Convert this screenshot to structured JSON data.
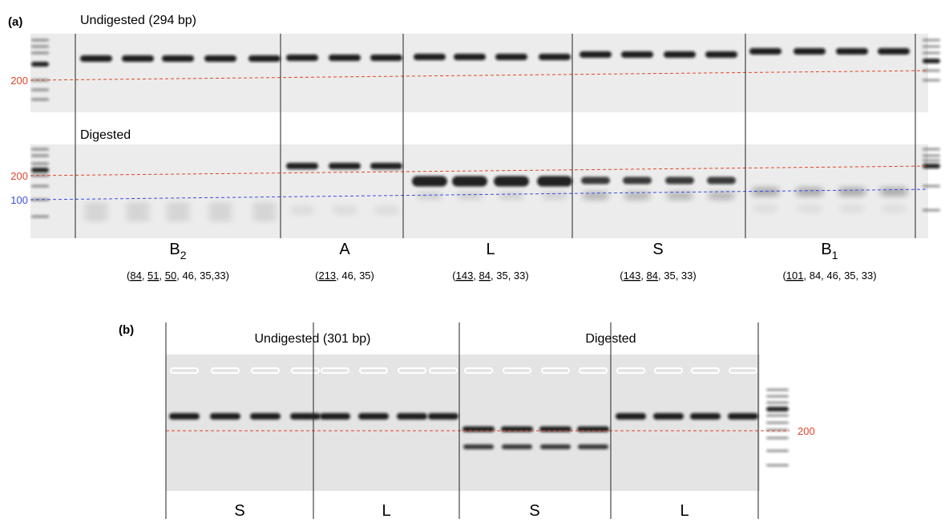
{
  "panel_a": {
    "label": "(a)",
    "undigested_title": "Undigested (294 bp)",
    "digested_title": "Digested",
    "marker_top": "200",
    "marker_mid": "200",
    "marker_low": "100",
    "groups": [
      {
        "name": "B",
        "sub": "2",
        "fragments": [
          {
            "text": "(",
            "u": false
          },
          {
            "text": "84",
            "u": true
          },
          {
            "text": ", ",
            "u": false
          },
          {
            "text": "51",
            "u": true
          },
          {
            "text": ", ",
            "u": false
          },
          {
            "text": "50",
            "u": true
          },
          {
            "text": ", 46, 35,33)",
            "u": false
          }
        ]
      },
      {
        "name": "A",
        "sub": "",
        "fragments": [
          {
            "text": "(",
            "u": false
          },
          {
            "text": "213",
            "u": true
          },
          {
            "text": ", 46, 35)",
            "u": false
          }
        ]
      },
      {
        "name": "L",
        "sub": "",
        "fragments": [
          {
            "text": "(",
            "u": false
          },
          {
            "text": "143",
            "u": true
          },
          {
            "text": ", ",
            "u": false
          },
          {
            "text": "84",
            "u": true
          },
          {
            "text": ", 35, 33)",
            "u": false
          }
        ]
      },
      {
        "name": "S",
        "sub": "",
        "fragments": [
          {
            "text": "(",
            "u": false
          },
          {
            "text": "143",
            "u": true
          },
          {
            "text": ", ",
            "u": false
          },
          {
            "text": "84",
            "u": true
          },
          {
            "text": ", 35, 33)",
            "u": false
          }
        ]
      },
      {
        "name": "B",
        "sub": "1",
        "fragments": [
          {
            "text": "(",
            "u": false
          },
          {
            "text": "101",
            "u": true
          },
          {
            "text": ", 84, 46, 35, 33)",
            "u": false
          }
        ]
      }
    ]
  },
  "panel_b": {
    "label": "(b)",
    "undigested_title": "Undigested (301 bp)",
    "digested_title": "Digested",
    "marker": "200",
    "groups": [
      "S",
      "L",
      "S",
      "L"
    ]
  }
}
